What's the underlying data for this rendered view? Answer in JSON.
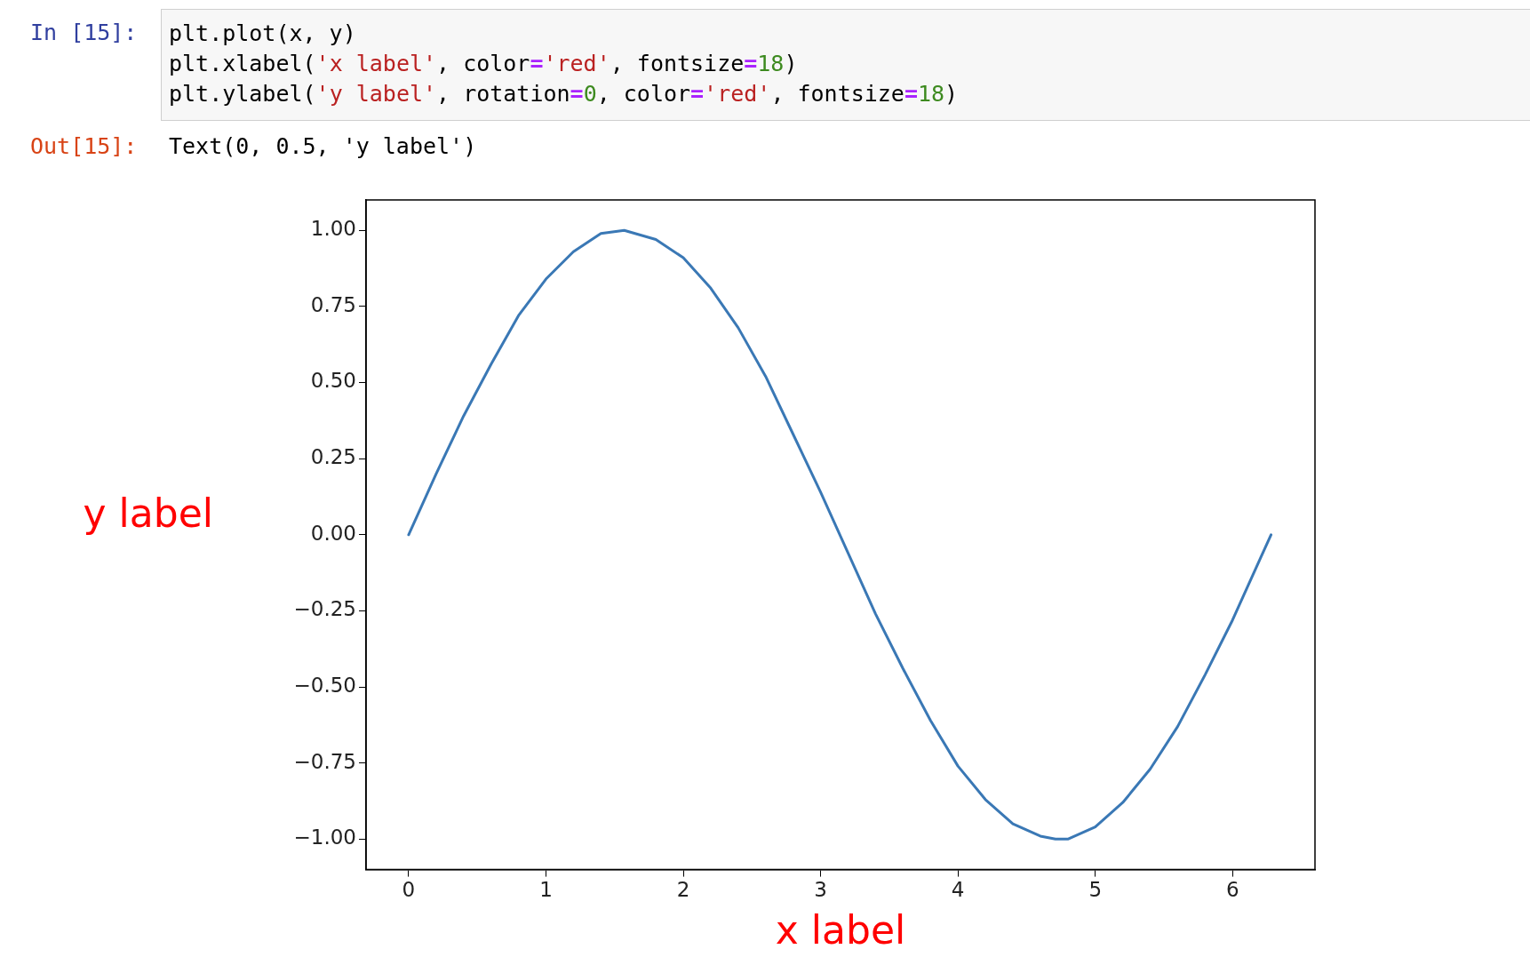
{
  "chart_data": {
    "type": "line",
    "xlabel": "x label",
    "ylabel": "y label",
    "annotations": [
      "In [15]:",
      "plt.plot(x, y)",
      "plt.xlabel('x label', color='red', fontsize=18)",
      "plt.ylabel('y label', rotation=0, color='red', fontsize=18)",
      "Out[15]:",
      "Text(0, 0.5, 'y label')"
    ],
    "x": [
      0,
      0.2,
      0.4,
      0.6,
      0.8,
      1.0,
      1.2,
      1.4,
      1.57,
      1.8,
      2.0,
      2.2,
      2.4,
      2.6,
      2.8,
      3.0,
      3.2,
      3.4,
      3.6,
      3.8,
      4.0,
      4.2,
      4.4,
      4.6,
      4.71,
      4.8,
      5.0,
      5.2,
      5.4,
      5.6,
      5.8,
      6.0,
      6.2,
      6.28
    ],
    "series": [
      {
        "color": "#3a78b5",
        "values": [
          0,
          0.2,
          0.39,
          0.56,
          0.72,
          0.84,
          0.93,
          0.99,
          1.0,
          0.97,
          0.91,
          0.81,
          0.68,
          0.52,
          0.33,
          0.14,
          -0.06,
          -0.26,
          -0.44,
          -0.61,
          -0.76,
          -0.87,
          -0.95,
          -0.99,
          -1.0,
          -1.0,
          -0.96,
          -0.88,
          -0.77,
          -0.63,
          -0.46,
          -0.28,
          -0.08,
          0.0
        ]
      }
    ],
    "xlim": [
      -0.31,
      6.6
    ],
    "xticks": [
      0,
      1,
      2,
      3,
      4,
      5,
      6
    ],
    "ylim": [
      -1.1,
      1.1
    ],
    "yticks": [
      {
        "value": -1,
        "label": "−1.00"
      },
      {
        "value": -0.75,
        "label": "−0.75"
      },
      {
        "value": -0.5,
        "label": "−0.50"
      },
      {
        "value": -0.25,
        "label": "−0.25"
      },
      {
        "value": 0,
        "label": "0.00"
      },
      {
        "value": 0.25,
        "label": "0.25"
      },
      {
        "value": 0.5,
        "label": "0.50"
      },
      {
        "value": 0.75,
        "label": "0.75"
      },
      {
        "value": 1,
        "label": "1.00"
      }
    ],
    "grid": false,
    "legend": false,
    "marker": "none",
    "line_style": "solid"
  }
}
